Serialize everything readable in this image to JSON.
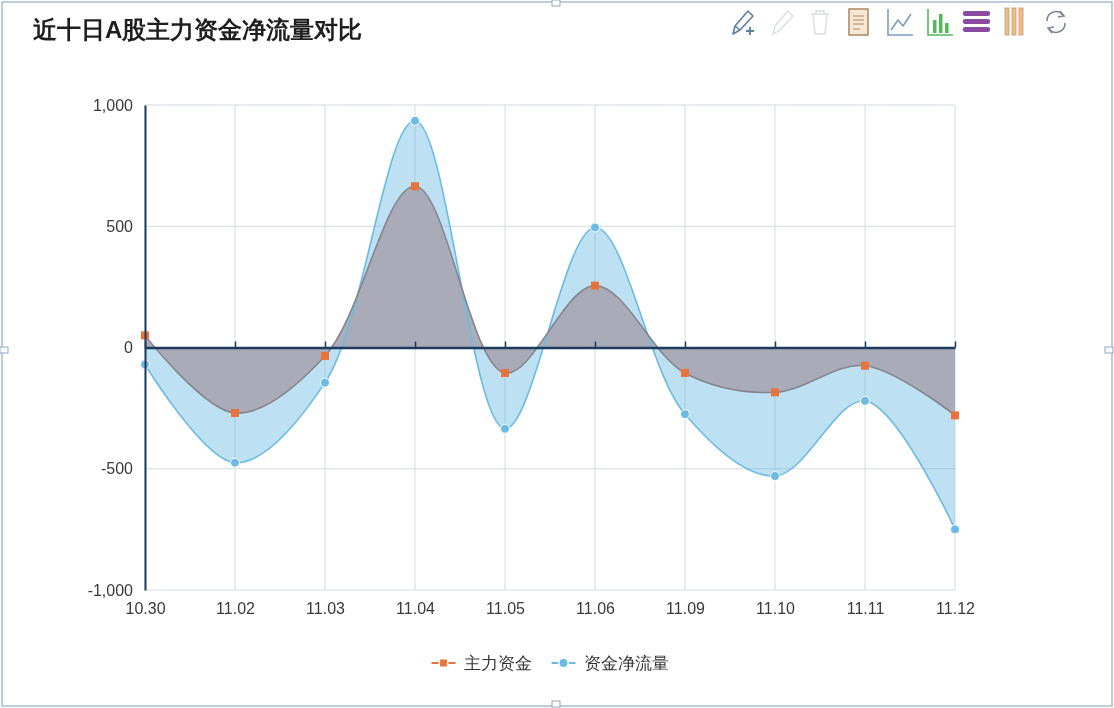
{
  "chart_data": {
    "type": "area",
    "title": "近十日A股主力资金净流量对比",
    "categories": [
      "10.30",
      "11.02",
      "11.03",
      "11.04",
      "11.05",
      "11.06",
      "11.09",
      "11.10",
      "11.11",
      "11.12"
    ],
    "series": [
      {
        "name": "主力资金",
        "color": "#e8743b",
        "marker": "square",
        "values": [
          50,
          -270,
          -35,
          665,
          -105,
          255,
          -105,
          -185,
          -75,
          -280
        ]
      },
      {
        "name": "资金净流量",
        "color": "#6cbbe4",
        "marker": "circle",
        "values": [
          -70,
          -475,
          -145,
          935,
          -335,
          495,
          -275,
          -530,
          -220,
          -750
        ]
      }
    ],
    "ylim": [
      -1000,
      1000
    ],
    "yticks": [
      {
        "value": -1000,
        "label": "-1,000"
      },
      -500,
      0,
      500,
      {
        "value": 1000,
        "label": "1,000"
      }
    ],
    "grid": true,
    "legend": "bottom"
  }
}
